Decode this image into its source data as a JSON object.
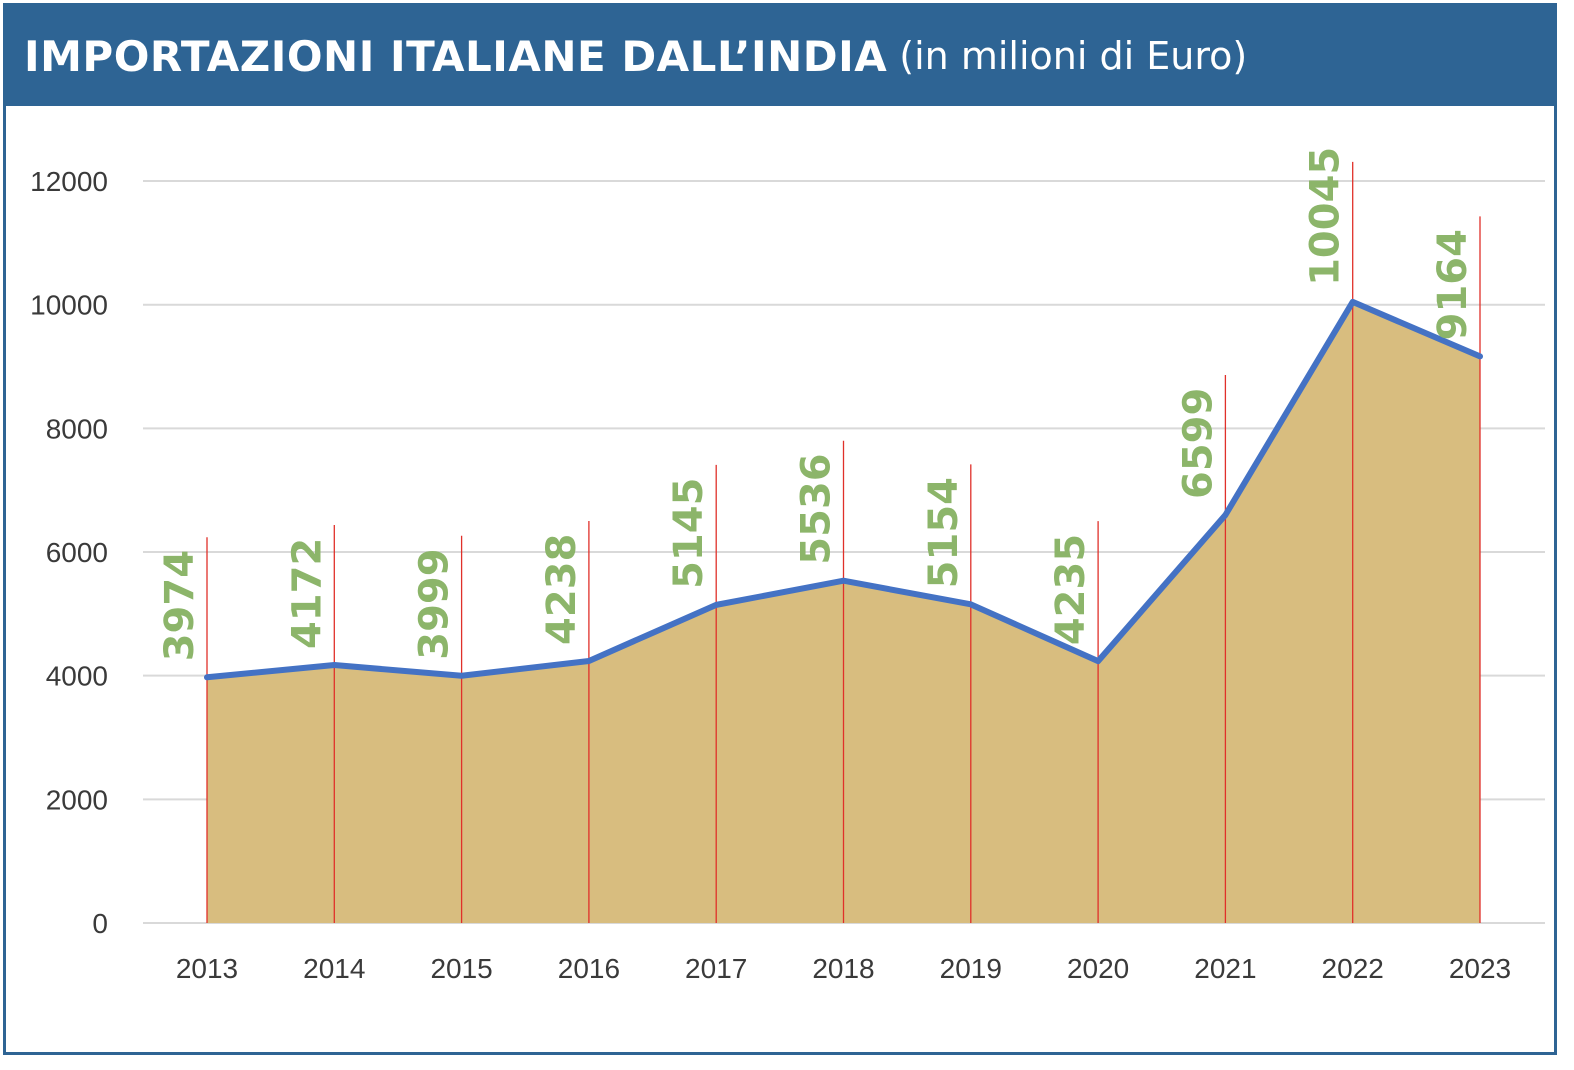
{
  "title": {
    "main": "IMPORTAZIONI ITALIANE DALL’INDIA",
    "sub": "(in milioni di Euro)"
  },
  "colors": {
    "header_bg": "#2e6494",
    "area_fill": "#d8bd7f",
    "line": "#4472c4",
    "data_label": "#8cb56a",
    "drop_line": "#e0302a",
    "grid": "#d9d9d9"
  },
  "chart_data": {
    "type": "area",
    "categories": [
      "2013",
      "2014",
      "2015",
      "2016",
      "2017",
      "2018",
      "2019",
      "2020",
      "2021",
      "2022",
      "2023"
    ],
    "values": [
      3974,
      4172,
      3999,
      4238,
      5145,
      5536,
      5154,
      4235,
      6599,
      10045,
      9164
    ],
    "data_labels": [
      "3974",
      "4172",
      "3999",
      "4238",
      "5145",
      "5536",
      "5154",
      "4235",
      "6599",
      "10045",
      "9164"
    ],
    "y_ticks": [
      "0",
      "2000",
      "4000",
      "6000",
      "8000",
      "10000",
      "12000"
    ],
    "ylim": [
      0,
      12000
    ],
    "grid": true,
    "legend": "none",
    "xlabel": "",
    "ylabel": ""
  }
}
